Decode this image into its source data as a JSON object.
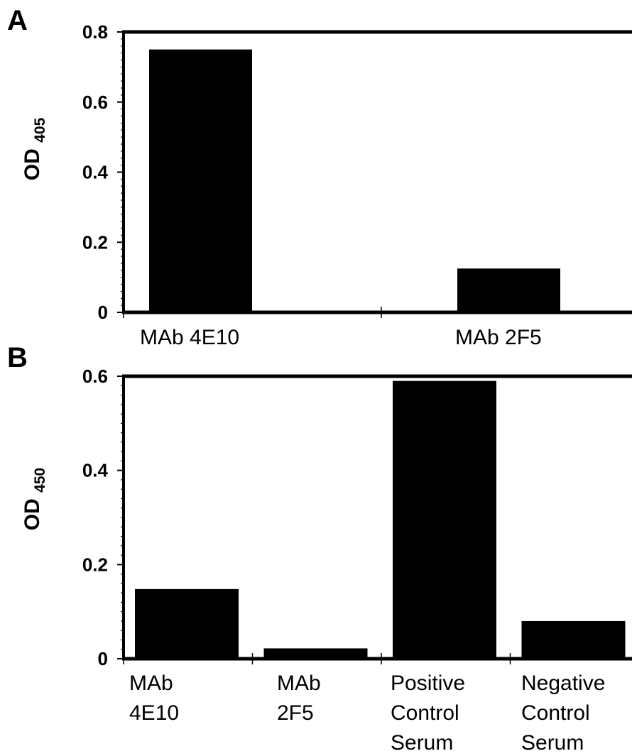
{
  "chart_data": [
    {
      "type": "bar",
      "panel_label": "A",
      "ylabel": "OD",
      "ylabel_sub": "405",
      "categories": [
        [
          "MAb 4E10"
        ],
        [
          "MAb 2F5"
        ]
      ],
      "values": [
        0.75,
        0.125
      ],
      "ylim": [
        0,
        0.8
      ],
      "yticks": [
        {
          "value": 0,
          "label": "0"
        },
        {
          "value": 0.2,
          "label": "0.2"
        },
        {
          "value": 0.4,
          "label": "0.4"
        },
        {
          "value": 0.6,
          "label": "0.6"
        },
        {
          "value": 0.8,
          "label": "0.8"
        }
      ],
      "bar_color": "#000000",
      "grid": false
    },
    {
      "type": "bar",
      "panel_label": "B",
      "ylabel": "OD",
      "ylabel_sub": "450",
      "categories": [
        [
          "MAb",
          "4E10"
        ],
        [
          "MAb",
          "2F5"
        ],
        [
          "Positive",
          "Control",
          "Serum"
        ],
        [
          "Negative",
          "Control",
          "Serum"
        ]
      ],
      "values": [
        0.148,
        0.022,
        0.59,
        0.08
      ],
      "ylim": [
        0,
        0.6
      ],
      "yticks": [
        {
          "value": 0,
          "label": "0"
        },
        {
          "value": 0.2,
          "label": "0.2"
        },
        {
          "value": 0.4,
          "label": "0.4"
        },
        {
          "value": 0.6,
          "label": "0.6"
        }
      ],
      "bar_color": "#000000",
      "grid": false
    }
  ]
}
